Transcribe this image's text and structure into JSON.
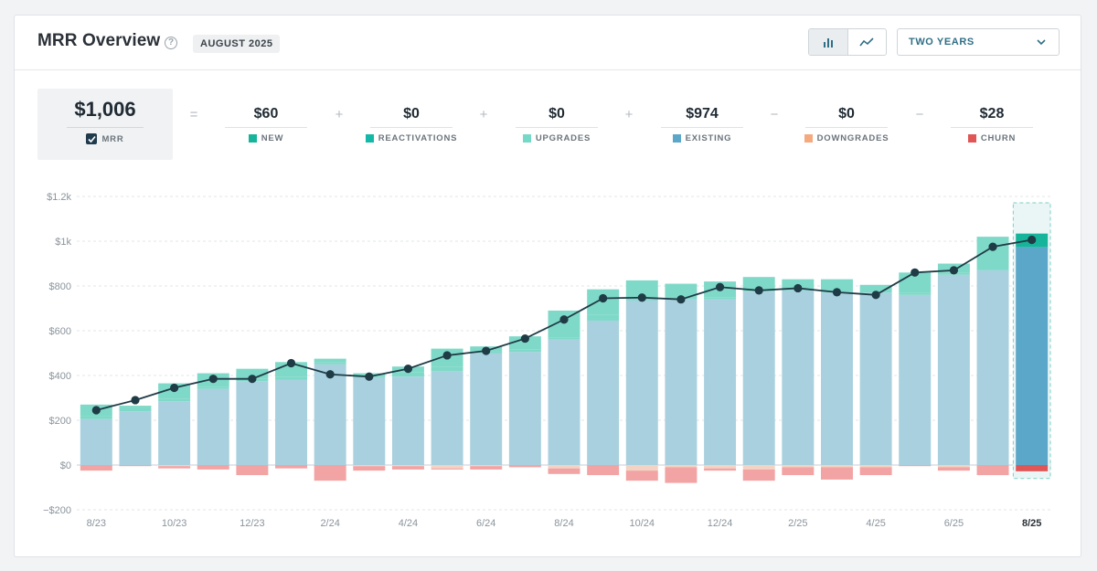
{
  "header": {
    "title": "MRR Overview",
    "help_glyph": "?",
    "date_badge": "AUGUST 2025",
    "range_select": "TWO YEARS"
  },
  "summary": {
    "mrr_value": "$1,006",
    "mrr_label": "MRR",
    "components": [
      {
        "value": "$60",
        "label": "NEW",
        "color": "#16b49a"
      },
      {
        "value": "$0",
        "label": "REACTIVATIONS",
        "color": "#14b8a6"
      },
      {
        "value": "$0",
        "label": "UPGRADES",
        "color": "#74d9c6"
      },
      {
        "value": "$974",
        "label": "EXISTING",
        "color": "#5ba7c9"
      },
      {
        "value": "$0",
        "label": "DOWNGRADES",
        "color": "#f5a97f"
      },
      {
        "value": "$28",
        "label": "CHURN",
        "color": "#e05656"
      }
    ],
    "operators": [
      "=",
      "+",
      "+",
      "+",
      "−",
      "−"
    ]
  },
  "chart_data": {
    "type": "bar",
    "title": "",
    "xlabel": "",
    "ylabel": "",
    "ylim": [
      -200,
      1200
    ],
    "yticks": [
      -200,
      0,
      200,
      400,
      600,
      800,
      1000,
      1200
    ],
    "ytick_labels": [
      "−$200",
      "$0",
      "$200",
      "$400",
      "$600",
      "$800",
      "$1k",
      "$1.2k"
    ],
    "categories": [
      "8/23",
      "9/23",
      "10/23",
      "11/23",
      "12/23",
      "1/24",
      "2/24",
      "3/24",
      "4/24",
      "5/24",
      "6/24",
      "7/24",
      "8/24",
      "9/24",
      "10/24",
      "11/24",
      "12/24",
      "1/25",
      "2/25",
      "3/25",
      "4/25",
      "5/25",
      "6/25",
      "7/25",
      "8/25"
    ],
    "xtick_labels": [
      "8/23",
      "",
      "10/23",
      "",
      "12/23",
      "",
      "2/24",
      "",
      "4/24",
      "",
      "6/24",
      "",
      "8/24",
      "",
      "10/24",
      "",
      "12/24",
      "",
      "2/25",
      "",
      "4/25",
      "",
      "6/25",
      "",
      "8/25"
    ],
    "highlight_category": "8/25",
    "series": [
      {
        "name": "Existing",
        "color": "#a9d0df",
        "values": [
          205,
          240,
          285,
          340,
          375,
          380,
          450,
          390,
          395,
          420,
          500,
          505,
          560,
          645,
          735,
          740,
          740,
          775,
          780,
          770,
          770,
          760,
          850,
          870,
          974
        ]
      },
      {
        "name": "Upgrades",
        "color": "#7fd9c8",
        "values": [
          15,
          15,
          10,
          10,
          10,
          15,
          10,
          5,
          20,
          20,
          10,
          10,
          10,
          25,
          10,
          15,
          10,
          0,
          0,
          0,
          0,
          10,
          10,
          0,
          0
        ]
      },
      {
        "name": "Reactivations",
        "color": "#7fd9c8",
        "values": [
          0,
          0,
          0,
          0,
          0,
          0,
          0,
          0,
          0,
          0,
          0,
          0,
          0,
          0,
          0,
          0,
          0,
          0,
          0,
          0,
          0,
          0,
          0,
          0,
          0
        ]
      },
      {
        "name": "New",
        "color": "#7fd9c8",
        "values": [
          50,
          10,
          70,
          60,
          45,
          65,
          15,
          15,
          25,
          80,
          20,
          60,
          120,
          115,
          80,
          55,
          70,
          65,
          50,
          60,
          35,
          90,
          40,
          150,
          60
        ]
      },
      {
        "name": "Downgrades",
        "color": "#f3d3c3",
        "values": [
          0,
          0,
          -5,
          0,
          0,
          0,
          0,
          -5,
          -5,
          -15,
          -5,
          0,
          -15,
          0,
          -25,
          -10,
          -15,
          -20,
          -10,
          -10,
          -10,
          0,
          -10,
          0,
          0
        ]
      },
      {
        "name": "Churn",
        "color": "#f2a3a3",
        "values": [
          -25,
          -5,
          -10,
          -20,
          -45,
          -15,
          -70,
          -20,
          -15,
          -5,
          -15,
          -10,
          -25,
          -45,
          -45,
          -70,
          -10,
          -50,
          -35,
          -55,
          -35,
          -5,
          -15,
          -45,
          -28
        ]
      }
    ],
    "line": {
      "name": "MRR",
      "color": "#1f3b46",
      "values": [
        245,
        290,
        345,
        385,
        385,
        455,
        405,
        395,
        430,
        490,
        510,
        565,
        650,
        745,
        748,
        740,
        795,
        780,
        790,
        772,
        760,
        860,
        870,
        975,
        1006
      ]
    },
    "grid": true,
    "legend": "none"
  }
}
